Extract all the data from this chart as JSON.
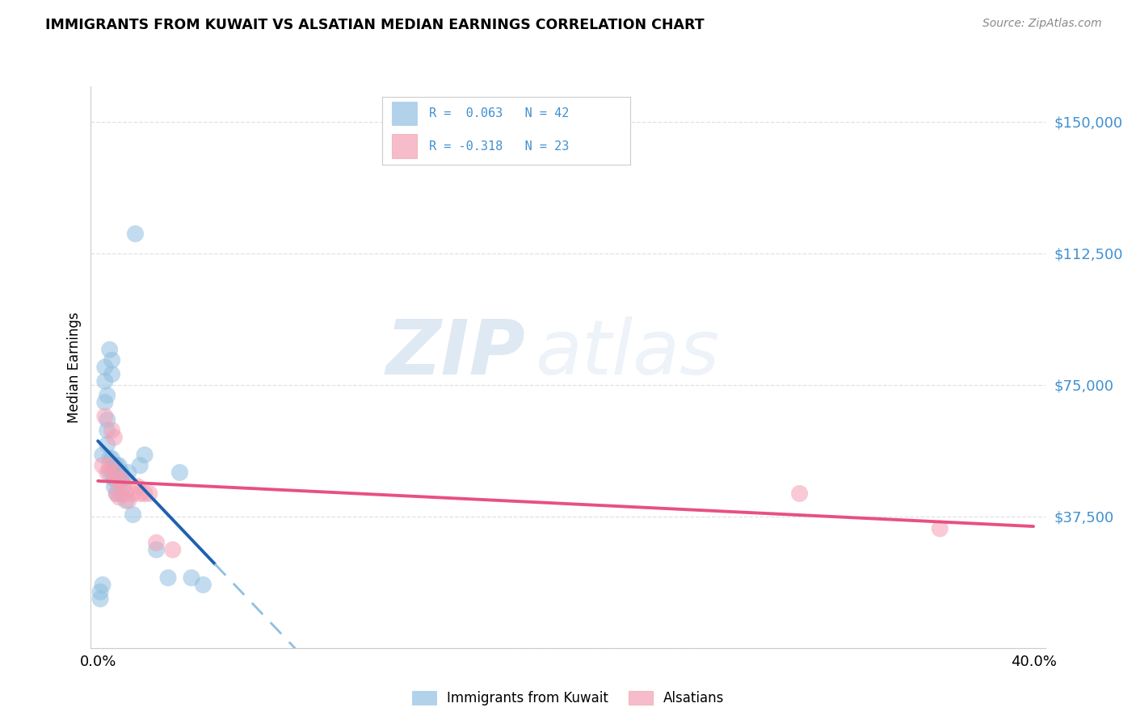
{
  "title": "IMMIGRANTS FROM KUWAIT VS ALSATIAN MEDIAN EARNINGS CORRELATION CHART",
  "source": "Source: ZipAtlas.com",
  "ylabel": "Median Earnings",
  "xlim": [
    -0.003,
    0.405
  ],
  "ylim": [
    0,
    160000
  ],
  "ytick_vals": [
    0,
    37500,
    75000,
    112500,
    150000
  ],
  "ytick_labels": [
    "",
    "$37,500",
    "$75,000",
    "$112,500",
    "$150,000"
  ],
  "xtick_vals": [
    0.0,
    0.05,
    0.1,
    0.15,
    0.2,
    0.25,
    0.3,
    0.35,
    0.4
  ],
  "xtick_labels": [
    "0.0%",
    "",
    "",
    "",
    "",
    "",
    "",
    "",
    "40.0%"
  ],
  "blue_color": "#90bfe0",
  "pink_color": "#f5a0b5",
  "trend_blue_solid": "#2060b0",
  "trend_blue_dash": "#90bfe0",
  "trend_pink_solid": "#e85080",
  "tick_color": "#4090d0",
  "grid_color": "#e0e0e8",
  "legend_r1_color": "#4090d0",
  "legend_r2_color": "#4090d0",
  "legend_r1_text": "R =  0.063   N = 42",
  "legend_r2_text": "R = -0.318   N = 23",
  "blue_x": [
    0.001,
    0.001,
    0.002,
    0.002,
    0.003,
    0.003,
    0.003,
    0.004,
    0.004,
    0.004,
    0.004,
    0.005,
    0.005,
    0.005,
    0.006,
    0.006,
    0.006,
    0.006,
    0.007,
    0.007,
    0.007,
    0.007,
    0.008,
    0.008,
    0.008,
    0.009,
    0.009,
    0.01,
    0.01,
    0.01,
    0.011,
    0.012,
    0.013,
    0.015,
    0.016,
    0.018,
    0.02,
    0.025,
    0.03,
    0.035,
    0.04,
    0.045
  ],
  "blue_y": [
    14000,
    16000,
    18000,
    55000,
    80000,
    76000,
    70000,
    72000,
    65000,
    62000,
    58000,
    85000,
    54000,
    50000,
    82000,
    78000,
    54000,
    50000,
    52000,
    48000,
    50000,
    46000,
    52000,
    50000,
    44000,
    52000,
    48000,
    50000,
    48000,
    44000,
    48000,
    42000,
    50000,
    38000,
    118000,
    52000,
    55000,
    28000,
    20000,
    50000,
    20000,
    18000
  ],
  "pink_x": [
    0.002,
    0.003,
    0.004,
    0.005,
    0.006,
    0.007,
    0.007,
    0.008,
    0.008,
    0.009,
    0.01,
    0.011,
    0.012,
    0.013,
    0.015,
    0.017,
    0.018,
    0.02,
    0.022,
    0.025,
    0.032,
    0.3,
    0.36
  ],
  "pink_y": [
    52000,
    66000,
    50000,
    52000,
    62000,
    60000,
    50000,
    48000,
    44000,
    43000,
    48000,
    46000,
    44000,
    42000,
    44000,
    46000,
    44000,
    44000,
    44000,
    30000,
    28000,
    44000,
    34000
  ]
}
